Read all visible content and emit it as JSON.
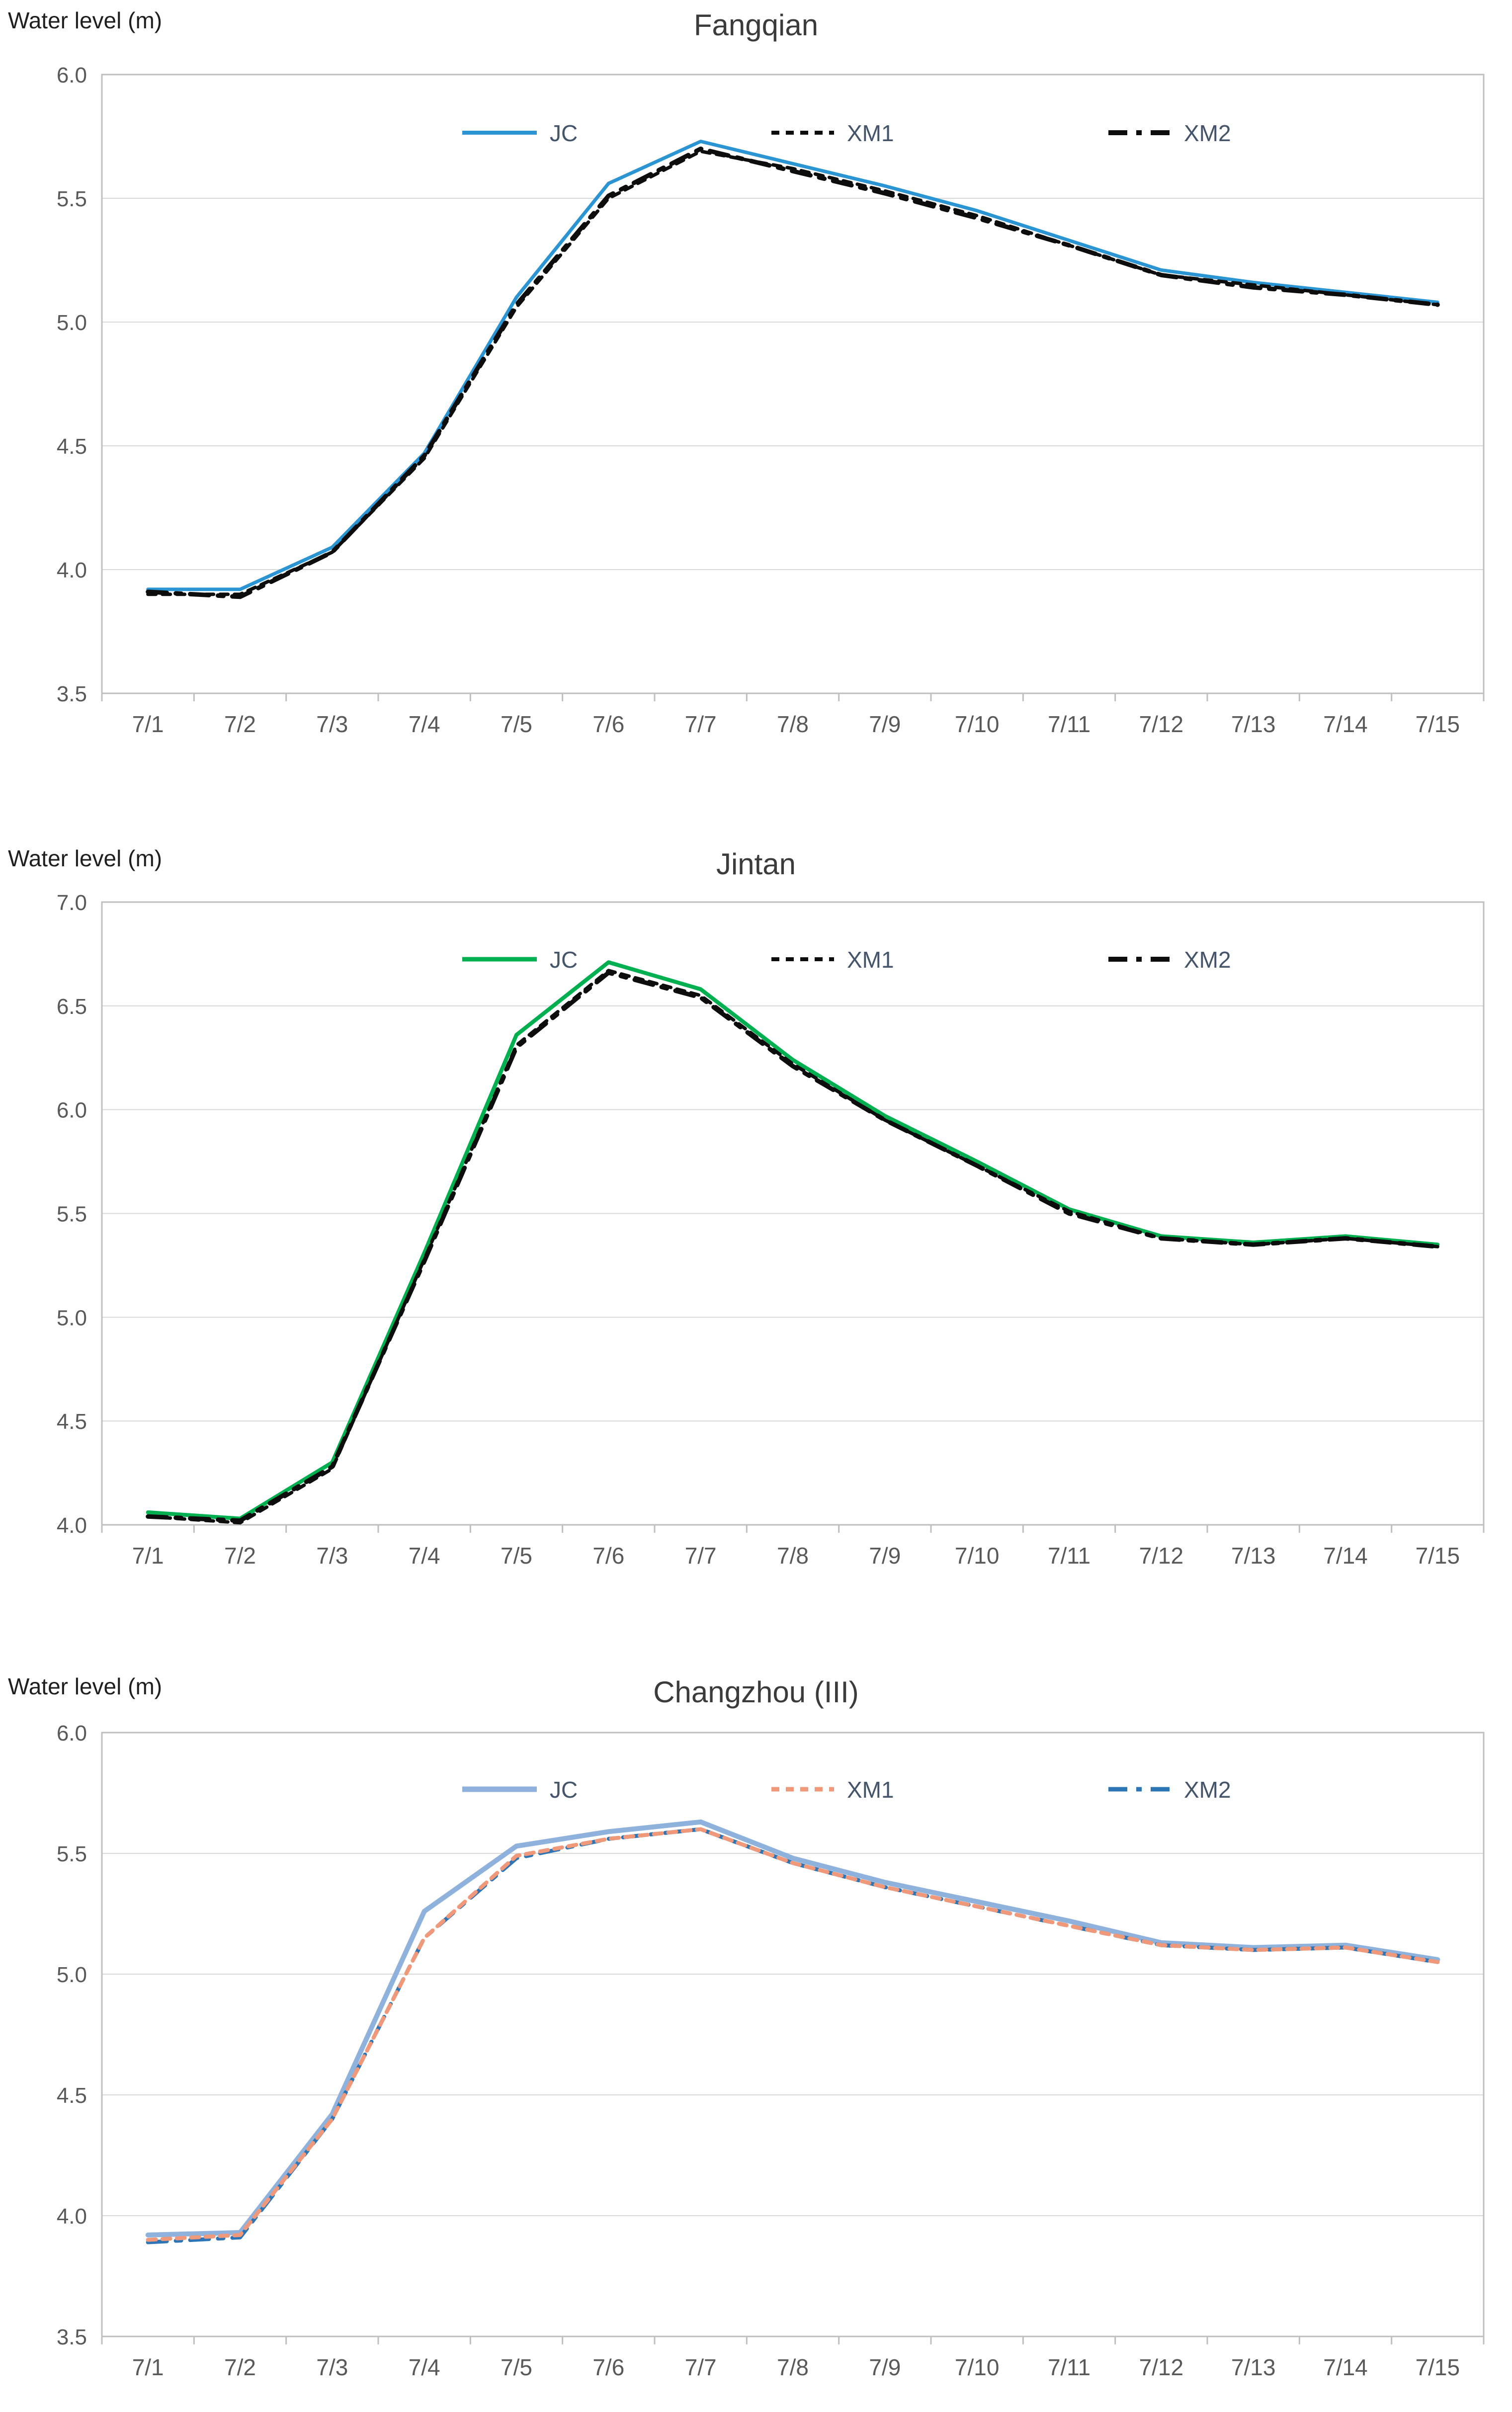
{
  "page": {
    "background": "#ffffff"
  },
  "colors": {
    "gridline": "#d9d9d9",
    "plot_border": "#bfbfbf",
    "axis_tick_label": "#595959",
    "legend_text": "#44546a",
    "title_text": "#3b3b3b",
    "y_axis_title_text": "#1f1f1f"
  },
  "chart_data": [
    {
      "type": "line",
      "title": "Fangqian",
      "ylabel": "Water level (m)",
      "xlabel": "",
      "ylim": [
        3.5,
        6.0
      ],
      "ytick_labels": [
        "6.0",
        "5.5",
        "5.0",
        "4.5",
        "4.0",
        "3.5"
      ],
      "grid": true,
      "legend_position": "top-inside",
      "categories": [
        "7/1",
        "7/2",
        "7/3",
        "7/4",
        "7/5",
        "7/6",
        "7/7",
        "7/8",
        "7/9",
        "7/10",
        "7/11",
        "7/12",
        "7/13",
        "7/14",
        "7/15"
      ],
      "series": [
        {
          "name": "JC",
          "color": "#2b95d3",
          "style": "solid",
          "values": [
            3.92,
            3.92,
            4.09,
            4.47,
            5.1,
            5.56,
            5.73,
            5.64,
            5.55,
            5.45,
            5.33,
            5.21,
            5.16,
            5.12,
            5.08
          ]
        },
        {
          "name": "XM1",
          "color": "#0d0d0d",
          "style": "short-dash",
          "values": [
            3.9,
            3.9,
            4.07,
            4.45,
            5.06,
            5.5,
            5.69,
            5.62,
            5.53,
            5.43,
            5.31,
            5.19,
            5.15,
            5.11,
            5.07
          ]
        },
        {
          "name": "XM2",
          "color": "#0d0d0d",
          "style": "long-dash",
          "values": [
            3.91,
            3.89,
            4.07,
            4.46,
            5.07,
            5.51,
            5.7,
            5.61,
            5.52,
            5.42,
            5.31,
            5.19,
            5.14,
            5.11,
            5.07
          ]
        }
      ]
    },
    {
      "type": "line",
      "title": "Jintan",
      "ylabel": "Water level (m)",
      "xlabel": "",
      "ylim": [
        4.0,
        7.0
      ],
      "ytick_labels": [
        "7.0",
        "6.5",
        "6.0",
        "5.5",
        "5.0",
        "4.5",
        "4.0"
      ],
      "grid": true,
      "legend_position": "top-inside",
      "categories": [
        "7/1",
        "7/2",
        "7/3",
        "7/4",
        "7/5",
        "7/6",
        "7/7",
        "7/8",
        "7/9",
        "7/10",
        "7/11",
        "7/12",
        "7/13",
        "7/14",
        "7/15"
      ],
      "series": [
        {
          "name": "JC",
          "color": "#00b050",
          "style": "solid",
          "values": [
            4.06,
            4.03,
            4.3,
            5.31,
            6.36,
            6.71,
            6.58,
            6.24,
            5.97,
            5.75,
            5.52,
            5.39,
            5.36,
            5.39,
            5.35
          ]
        },
        {
          "name": "XM1",
          "color": "#0d0d0d",
          "style": "short-dash",
          "values": [
            4.04,
            4.01,
            4.27,
            5.28,
            6.31,
            6.67,
            6.55,
            6.22,
            5.95,
            5.73,
            5.51,
            5.38,
            5.35,
            5.38,
            5.34
          ]
        },
        {
          "name": "XM2",
          "color": "#0d0d0d",
          "style": "long-dash",
          "values": [
            4.04,
            4.02,
            4.28,
            5.27,
            6.3,
            6.66,
            6.54,
            6.21,
            5.95,
            5.73,
            5.5,
            5.38,
            5.35,
            5.38,
            5.34
          ]
        }
      ]
    },
    {
      "type": "line",
      "title": "Changzhou (III)",
      "ylabel": "Water level (m)",
      "xlabel": "",
      "ylim": [
        3.5,
        6.0
      ],
      "ytick_labels": [
        "6.0",
        "5.5",
        "5.0",
        "4.5",
        "4.0",
        "3.5"
      ],
      "grid": true,
      "legend_position": "top-inside",
      "categories": [
        "7/1",
        "7/2",
        "7/3",
        "7/4",
        "7/5",
        "7/6",
        "7/7",
        "7/8",
        "7/9",
        "7/10",
        "7/11",
        "7/12",
        "7/13",
        "7/14",
        "7/15"
      ],
      "series": [
        {
          "name": "JC",
          "color": "#8fb2dc",
          "style": "solid",
          "values": [
            3.92,
            3.93,
            4.42,
            5.26,
            5.53,
            5.59,
            5.63,
            5.48,
            5.38,
            5.3,
            5.22,
            5.13,
            5.11,
            5.12,
            5.06
          ]
        },
        {
          "name": "XM1",
          "color": "#f0997a",
          "style": "short-dash",
          "values": [
            3.9,
            3.92,
            4.4,
            5.15,
            5.49,
            5.56,
            5.6,
            5.46,
            5.36,
            5.28,
            5.2,
            5.12,
            5.1,
            5.11,
            5.05
          ]
        },
        {
          "name": "XM2",
          "color": "#2e75b6",
          "style": "long-dash",
          "values": [
            3.89,
            3.91,
            4.4,
            5.15,
            5.48,
            5.56,
            5.6,
            5.46,
            5.36,
            5.28,
            5.2,
            5.12,
            5.1,
            5.11,
            5.05
          ]
        }
      ]
    }
  ]
}
